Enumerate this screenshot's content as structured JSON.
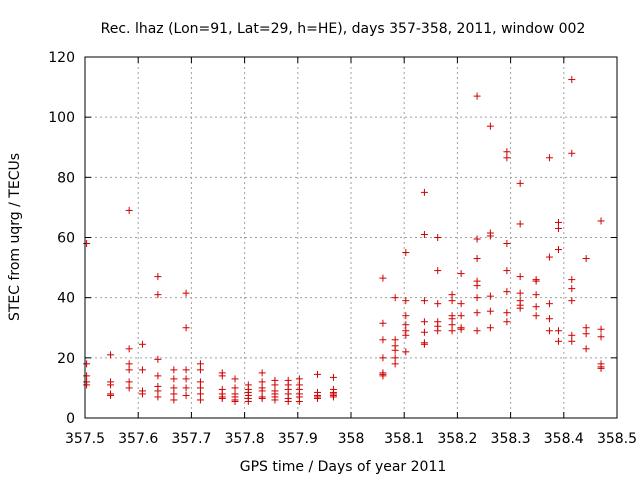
{
  "chart_data": {
    "type": "scatter",
    "title": "Rec. lhaz (Lon=91, Lat=29, h=HE), days 357-358, 2011, window 002",
    "xlabel": "GPS time / Days of year 2011",
    "ylabel": "STEC from uqrg / TECUs",
    "xlim": [
      357.5,
      358.5
    ],
    "ylim": [
      0,
      120
    ],
    "xticks": [
      357.5,
      357.6,
      357.7,
      357.8,
      357.9,
      358.0,
      358.1,
      358.2,
      358.3,
      358.4,
      358.5
    ],
    "xtick_labels": [
      "357.5",
      "357.6",
      "357.7",
      "357.8",
      "357.9",
      "358",
      "358.1",
      "358.2",
      "358.3",
      "358.4",
      "358.5"
    ],
    "yticks": [
      0,
      20,
      40,
      60,
      80,
      100,
      120
    ],
    "ytick_labels": [
      "0",
      "20",
      "40",
      "60",
      "80",
      "100",
      "120"
    ],
    "grid": true,
    "marker": "plus",
    "color": "#d00000",
    "points": [
      [
        357.503,
        58
      ],
      [
        357.503,
        18
      ],
      [
        357.503,
        14
      ],
      [
        357.503,
        12
      ],
      [
        357.503,
        11
      ],
      [
        357.548,
        21
      ],
      [
        357.548,
        12
      ],
      [
        357.548,
        11
      ],
      [
        357.548,
        8
      ],
      [
        357.548,
        7.5
      ],
      [
        357.583,
        69
      ],
      [
        357.583,
        23
      ],
      [
        357.583,
        18
      ],
      [
        357.583,
        16
      ],
      [
        357.583,
        12
      ],
      [
        357.583,
        10
      ],
      [
        357.608,
        24.5
      ],
      [
        357.608,
        16
      ],
      [
        357.608,
        9
      ],
      [
        357.608,
        8
      ],
      [
        357.637,
        47
      ],
      [
        357.637,
        41
      ],
      [
        357.637,
        19.5
      ],
      [
        357.637,
        14
      ],
      [
        357.637,
        10.5
      ],
      [
        357.637,
        9
      ],
      [
        357.637,
        7
      ],
      [
        357.667,
        16
      ],
      [
        357.667,
        13
      ],
      [
        357.667,
        10
      ],
      [
        357.667,
        8
      ],
      [
        357.667,
        6
      ],
      [
        357.69,
        41.5
      ],
      [
        357.69,
        30
      ],
      [
        357.69,
        16
      ],
      [
        357.69,
        13
      ],
      [
        357.69,
        10
      ],
      [
        357.69,
        7.5
      ],
      [
        357.717,
        18
      ],
      [
        357.717,
        16
      ],
      [
        357.717,
        12
      ],
      [
        357.717,
        10
      ],
      [
        357.717,
        8
      ],
      [
        357.717,
        6
      ],
      [
        357.758,
        15
      ],
      [
        357.758,
        14
      ],
      [
        357.758,
        9.5
      ],
      [
        357.758,
        8
      ],
      [
        357.758,
        7
      ],
      [
        357.758,
        6.5
      ],
      [
        357.782,
        13
      ],
      [
        357.782,
        10
      ],
      [
        357.782,
        8
      ],
      [
        357.782,
        7
      ],
      [
        357.782,
        6
      ],
      [
        357.782,
        5.5
      ],
      [
        357.807,
        11
      ],
      [
        357.807,
        9.5
      ],
      [
        357.807,
        8.5
      ],
      [
        357.807,
        7.5
      ],
      [
        357.807,
        6.5
      ],
      [
        357.807,
        5.5
      ],
      [
        357.833,
        15
      ],
      [
        357.833,
        12
      ],
      [
        357.833,
        10
      ],
      [
        357.833,
        9
      ],
      [
        357.833,
        7
      ],
      [
        357.833,
        6.5
      ],
      [
        357.857,
        12.5
      ],
      [
        357.857,
        11
      ],
      [
        357.857,
        9
      ],
      [
        357.857,
        8
      ],
      [
        357.857,
        7
      ],
      [
        357.857,
        6
      ],
      [
        357.882,
        12.5
      ],
      [
        357.882,
        11
      ],
      [
        357.882,
        9.5
      ],
      [
        357.882,
        8
      ],
      [
        357.882,
        6.5
      ],
      [
        357.882,
        5.5
      ],
      [
        357.903,
        13
      ],
      [
        357.903,
        11
      ],
      [
        357.903,
        9.5
      ],
      [
        357.903,
        8
      ],
      [
        357.903,
        7
      ],
      [
        357.903,
        5.5
      ],
      [
        357.937,
        14.5
      ],
      [
        357.937,
        8.5
      ],
      [
        357.937,
        7.5
      ],
      [
        357.937,
        7
      ],
      [
        357.937,
        6.5
      ],
      [
        357.967,
        13.5
      ],
      [
        357.967,
        9.5
      ],
      [
        357.967,
        8.5
      ],
      [
        357.967,
        8
      ],
      [
        357.967,
        7.5
      ],
      [
        357.967,
        7
      ],
      [
        358.06,
        46.5
      ],
      [
        358.06,
        31.5
      ],
      [
        358.06,
        26
      ],
      [
        358.06,
        20
      ],
      [
        358.06,
        15
      ],
      [
        358.06,
        14.5
      ],
      [
        358.06,
        14
      ],
      [
        358.083,
        40
      ],
      [
        358.083,
        26
      ],
      [
        358.083,
        24
      ],
      [
        358.083,
        22.5
      ],
      [
        358.083,
        20
      ],
      [
        358.083,
        18
      ],
      [
        358.103,
        55
      ],
      [
        358.103,
        39
      ],
      [
        358.103,
        34
      ],
      [
        358.103,
        31
      ],
      [
        358.103,
        29
      ],
      [
        358.103,
        27.5
      ],
      [
        358.103,
        22
      ],
      [
        358.138,
        75
      ],
      [
        358.138,
        61
      ],
      [
        358.138,
        39
      ],
      [
        358.138,
        32
      ],
      [
        358.138,
        28.5
      ],
      [
        358.138,
        25
      ],
      [
        358.138,
        24.5
      ],
      [
        358.163,
        60
      ],
      [
        358.163,
        49
      ],
      [
        358.163,
        38
      ],
      [
        358.163,
        32
      ],
      [
        358.163,
        30.5
      ],
      [
        358.163,
        29
      ],
      [
        358.19,
        41
      ],
      [
        358.19,
        39
      ],
      [
        358.19,
        34
      ],
      [
        358.19,
        33
      ],
      [
        358.19,
        31
      ],
      [
        358.19,
        29
      ],
      [
        358.207,
        48
      ],
      [
        358.207,
        38
      ],
      [
        358.207,
        34
      ],
      [
        358.207,
        30
      ],
      [
        358.207,
        29.5
      ],
      [
        358.237,
        107
      ],
      [
        358.237,
        59.5
      ],
      [
        358.237,
        53
      ],
      [
        358.237,
        45.5
      ],
      [
        358.237,
        44
      ],
      [
        358.237,
        40
      ],
      [
        358.237,
        35
      ],
      [
        358.237,
        29
      ],
      [
        358.262,
        97
      ],
      [
        358.262,
        61.5
      ],
      [
        358.262,
        60.5
      ],
      [
        358.262,
        40.5
      ],
      [
        358.262,
        35.5
      ],
      [
        358.262,
        30
      ],
      [
        358.293,
        88.5
      ],
      [
        358.293,
        86.5
      ],
      [
        358.293,
        58
      ],
      [
        358.293,
        49
      ],
      [
        358.293,
        42
      ],
      [
        358.293,
        35
      ],
      [
        358.293,
        32
      ],
      [
        358.318,
        78
      ],
      [
        358.318,
        64.5
      ],
      [
        358.318,
        47
      ],
      [
        358.318,
        41.5
      ],
      [
        358.318,
        39
      ],
      [
        358.318,
        37.5
      ],
      [
        358.318,
        36.5
      ],
      [
        358.348,
        46
      ],
      [
        358.348,
        45.5
      ],
      [
        358.348,
        41
      ],
      [
        358.348,
        37
      ],
      [
        358.348,
        34
      ],
      [
        358.373,
        86.5
      ],
      [
        358.373,
        53.5
      ],
      [
        358.373,
        38
      ],
      [
        358.373,
        33
      ],
      [
        358.373,
        29
      ],
      [
        358.39,
        65
      ],
      [
        358.39,
        63
      ],
      [
        358.39,
        56
      ],
      [
        358.39,
        29
      ],
      [
        358.39,
        25.5
      ],
      [
        358.415,
        112.5
      ],
      [
        358.415,
        88
      ],
      [
        358.415,
        46
      ],
      [
        358.415,
        43
      ],
      [
        358.415,
        39
      ],
      [
        358.415,
        27.5
      ],
      [
        358.415,
        25.5
      ],
      [
        358.442,
        53
      ],
      [
        358.442,
        30
      ],
      [
        358.442,
        28
      ],
      [
        358.442,
        23
      ],
      [
        358.47,
        65.5
      ],
      [
        358.47,
        29.5
      ],
      [
        358.47,
        27
      ],
      [
        358.47,
        18
      ],
      [
        358.47,
        17
      ],
      [
        358.47,
        16.5
      ]
    ]
  }
}
